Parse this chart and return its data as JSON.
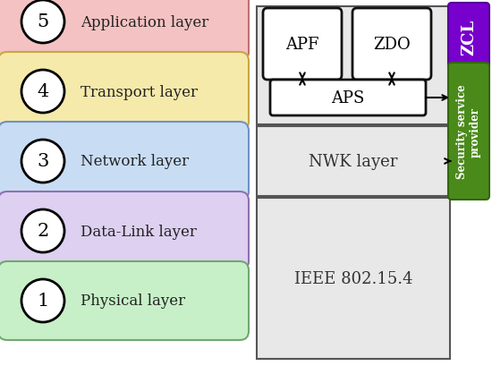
{
  "layers": [
    {
      "number": "5",
      "label": "Application layer",
      "bg": "#f4c2c2",
      "border": "#c07070"
    },
    {
      "number": "4",
      "label": "Transport layer",
      "bg": "#f5eaaa",
      "border": "#c8a840"
    },
    {
      "number": "3",
      "label": "Network layer",
      "bg": "#c8ddf4",
      "border": "#7090c8"
    },
    {
      "number": "2",
      "label": "Data-Link layer",
      "bg": "#ddd0f0",
      "border": "#9070b0"
    },
    {
      "number": "1",
      "label": "Physical layer",
      "bg": "#c8f0c8",
      "border": "#70a870"
    }
  ],
  "apf_label": "APF",
  "zdo_label": "ZDO",
  "aps_label": "APS",
  "nwk_label": "NWK layer",
  "ieee_label": "IEEE 802.15.4",
  "zcl_label": "ZCL",
  "security_label": "Security service\nprovider",
  "zcl_color": "#7700cc",
  "security_color": "#4a8a1a",
  "box_bg": "#e8e8e8",
  "box_border": "#555555"
}
